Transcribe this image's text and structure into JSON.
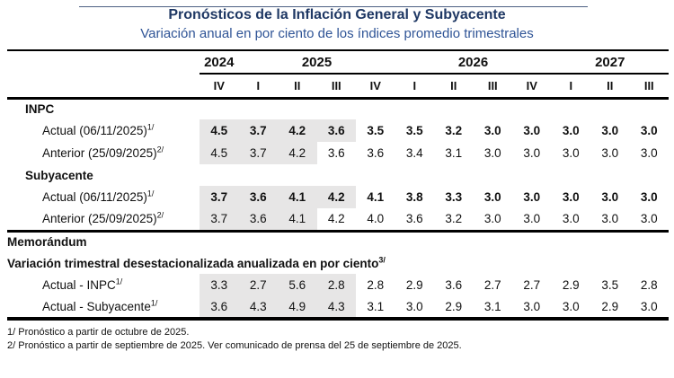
{
  "title": "Pronósticos de la Inflación General y Subyacente",
  "subtitle": "Variación anual en por ciento de los índices promedio trimestrales",
  "colors": {
    "title_text": "#1F3864",
    "subtitle_text": "#2F5496",
    "shade": "#E7E6E6",
    "rule": "#000000"
  },
  "table": {
    "year_groups": [
      {
        "label": "2024",
        "span": 1
      },
      {
        "label": "2025",
        "span": 4
      },
      {
        "label": "2026",
        "span": 4
      },
      {
        "label": "2027",
        "span": 3
      }
    ],
    "quarter_labels": [
      "IV",
      "I",
      "II",
      "III",
      "IV",
      "I",
      "II",
      "III",
      "IV",
      "I",
      "II",
      "III"
    ],
    "rows": [
      {
        "kind": "heading",
        "name": "inpc-heading",
        "label": "INPC",
        "indent": 20
      },
      {
        "kind": "data",
        "name": "inpc-actual",
        "label": "Actual (06/11/2025)",
        "sup": "1/",
        "indent": 39,
        "bold_values": true,
        "shaded_count": 4,
        "values": [
          "4.5",
          "3.7",
          "4.2",
          "3.6",
          "3.5",
          "3.5",
          "3.2",
          "3.0",
          "3.0",
          "3.0",
          "3.0",
          "3.0"
        ]
      },
      {
        "kind": "data",
        "name": "inpc-anterior",
        "label": "Anterior (25/09/2025)",
        "sup": "2/",
        "indent": 39,
        "bold_values": false,
        "shaded_count": 3,
        "values": [
          "4.5",
          "3.7",
          "4.2",
          "3.6",
          "3.6",
          "3.4",
          "3.1",
          "3.0",
          "3.0",
          "3.0",
          "3.0",
          "3.0"
        ]
      },
      {
        "kind": "heading",
        "name": "subyacente-heading",
        "label": "Subyacente",
        "indent": 20
      },
      {
        "kind": "data",
        "name": "subyacente-actual",
        "label": "Actual (06/11/2025)",
        "sup": "1/",
        "indent": 39,
        "bold_values": true,
        "shaded_count": 4,
        "values": [
          "3.7",
          "3.6",
          "4.1",
          "4.2",
          "4.1",
          "3.8",
          "3.3",
          "3.0",
          "3.0",
          "3.0",
          "3.0",
          "3.0"
        ]
      },
      {
        "kind": "data",
        "name": "subyacente-anterior",
        "label": "Anterior (25/09/2025)",
        "sup": "2/",
        "indent": 39,
        "bold_values": false,
        "shaded_count": 3,
        "values": [
          "3.7",
          "3.6",
          "4.1",
          "4.2",
          "4.0",
          "3.6",
          "3.2",
          "3.0",
          "3.0",
          "3.0",
          "3.0",
          "3.0"
        ]
      },
      {
        "kind": "heading",
        "name": "memo-heading",
        "label": "Memorándum",
        "indent": 0,
        "rule_top": true
      },
      {
        "kind": "heading",
        "name": "memo-measure-heading",
        "label": "Variación trimestral desestacionalizada anualizada en por ciento",
        "sup": "3/",
        "indent": 0
      },
      {
        "kind": "data",
        "name": "memo-actual-inpc",
        "label": "Actual - INPC",
        "sup": "1/",
        "indent": 39,
        "bold_values": false,
        "shaded_count": 4,
        "values": [
          "3.3",
          "2.7",
          "5.6",
          "2.8",
          "2.8",
          "2.9",
          "3.6",
          "2.7",
          "2.7",
          "2.9",
          "3.5",
          "2.8"
        ]
      },
      {
        "kind": "data",
        "name": "memo-actual-subyacente",
        "label": "Actual - Subyacente",
        "sup": "1/",
        "indent": 39,
        "bold_values": false,
        "shaded_count": 4,
        "values": [
          "3.6",
          "4.3",
          "4.9",
          "4.3",
          "3.1",
          "3.0",
          "2.9",
          "3.1",
          "3.0",
          "3.0",
          "2.9",
          "3.0"
        ]
      }
    ],
    "label_col_width": 214
  },
  "footnotes": [
    "1/ Pronóstico a partir de octubre de 2025.",
    "2/ Pronóstico a partir de septiembre de 2025. Ver comunicado de prensa del 25 de septiembre de 2025."
  ]
}
